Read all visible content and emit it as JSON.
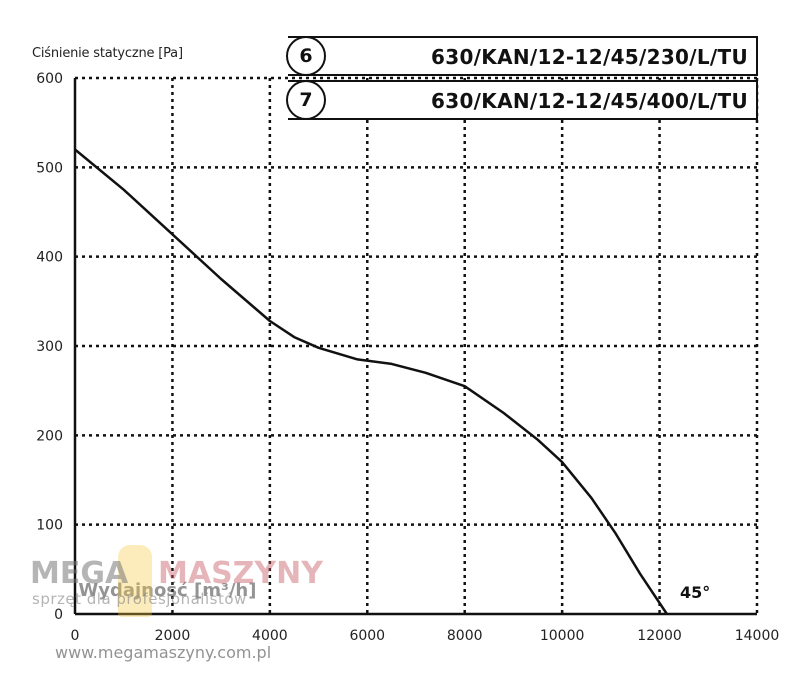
{
  "chart_data": {
    "type": "line",
    "ylabel": "Ciśnienie statyczne [Pa]",
    "xlabel": "Wydajność [m³/h]",
    "xlim": [
      0,
      14000
    ],
    "ylim": [
      0,
      600
    ],
    "xticks": [
      0,
      2000,
      4000,
      6000,
      8000,
      10000,
      12000,
      14000
    ],
    "yticks": [
      0,
      100,
      200,
      300,
      400,
      500,
      600
    ],
    "grid": true,
    "series": [
      {
        "x": [
          0,
          1000,
          2000,
          3000,
          4000,
          4500,
          5000,
          5800,
          6500,
          7200,
          8000,
          8800,
          9500,
          10000,
          10600,
          11100,
          11600,
          12150
        ],
        "y": [
          520,
          475,
          425,
          375,
          328,
          310,
          298,
          285,
          280,
          270,
          255,
          225,
          195,
          170,
          130,
          90,
          45,
          0
        ]
      }
    ],
    "legend": [
      {
        "number": "6",
        "model": "630/KAN/12-12/45/230/L/TU"
      },
      {
        "number": "7",
        "model": "630/KAN/12-12/45/400/L/TU"
      }
    ],
    "annotation": "45°"
  },
  "watermark": {
    "brand_left": "MEGA",
    "brand_right": "MASZYNY",
    "tagline": "sprzęt dla profesjonalistów",
    "url": "www.megamaszyny.com.pl"
  }
}
